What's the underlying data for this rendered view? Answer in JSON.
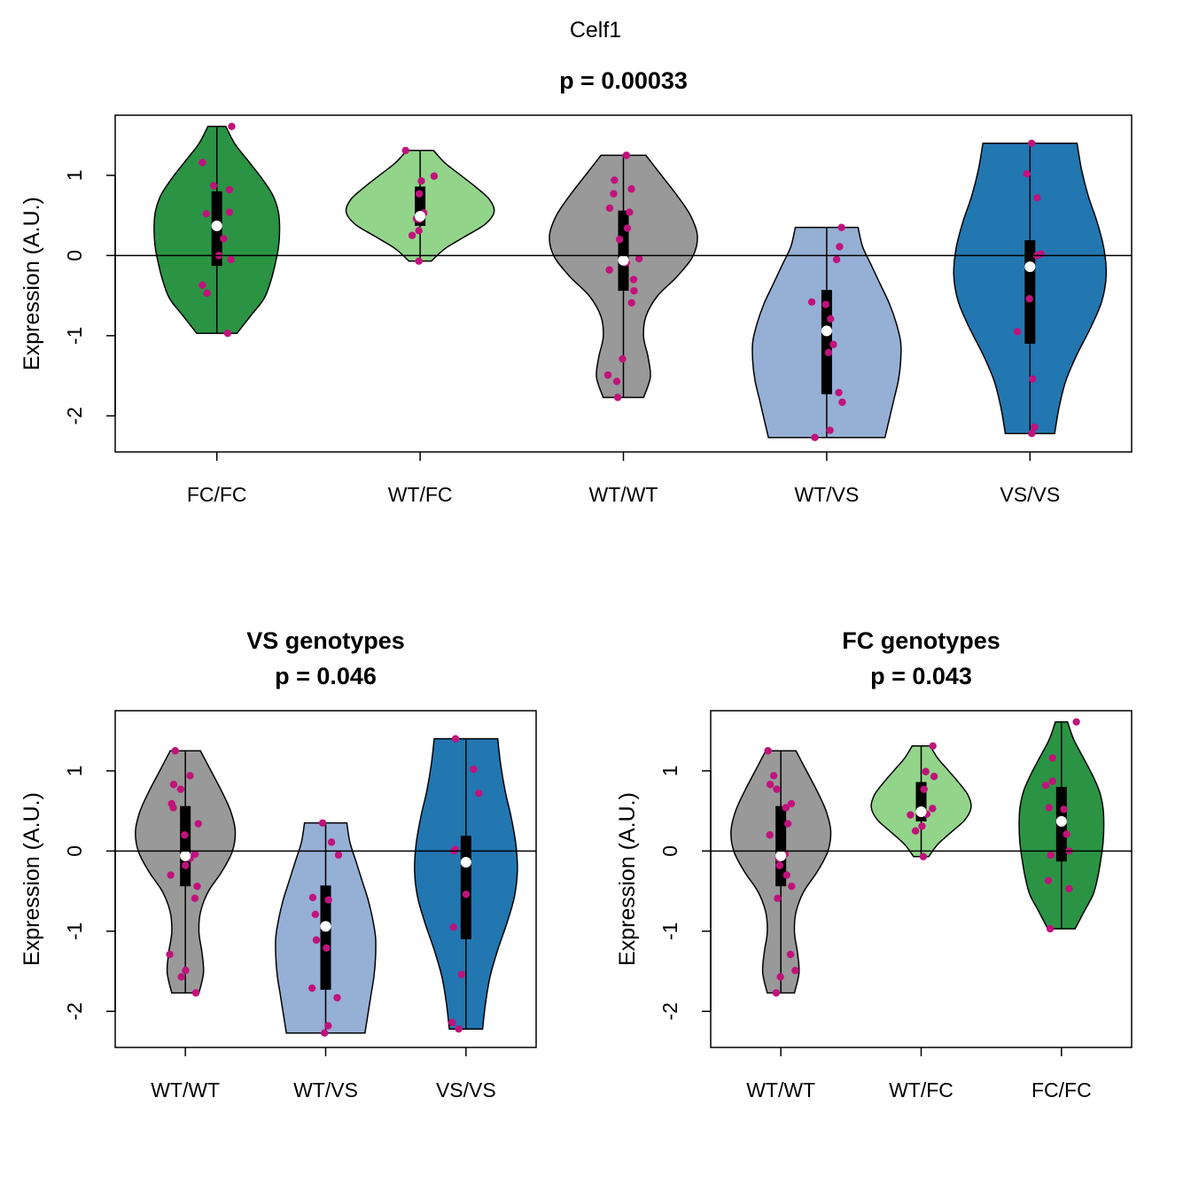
{
  "main_title": "Celf1",
  "colors": {
    "FC/FC": "#2a9444",
    "WT/FC": "#93d48b",
    "WT/WT": "#999999",
    "WT/VS": "#96afd5",
    "VS/VS": "#2277b1",
    "points": "#c1127c",
    "median": "#ffffff"
  },
  "chart_data": [
    {
      "id": "all",
      "type": "violin",
      "title_lines": [
        "p = 0.00033"
      ],
      "xlabel": "",
      "ylabel": "Expression (A.U.)",
      "ylim": [
        -2.45,
        1.75
      ],
      "yticks": [
        -2,
        -1,
        0,
        1
      ],
      "hline": 0,
      "categories": [
        "FC/FC",
        "WT/FC",
        "WT/WT",
        "WT/VS",
        "VS/VS"
      ],
      "groups": [
        {
          "name": "FC/FC",
          "color": "#2a9444",
          "min": -0.97,
          "max": 1.61,
          "q1": -0.13,
          "q3": 0.8,
          "median": 0.37,
          "violin_widths": [
            0.18,
            0.3,
            0.42,
            0.48,
            0.52,
            0.55,
            0.56,
            0.55,
            0.5,
            0.4,
            0.28,
            0.16,
            0.08
          ],
          "points": [
            -0.97,
            -0.47,
            -0.37,
            -0.05,
            0.0,
            0.21,
            0.52,
            0.54,
            0.82,
            0.87,
            1.16,
            1.61
          ]
        },
        {
          "name": "WT/FC",
          "color": "#93d48b",
          "min": -0.07,
          "max": 1.31,
          "q1": 0.37,
          "q3": 0.86,
          "median": 0.49,
          "violin_widths": [
            0.1,
            0.22,
            0.4,
            0.58,
            0.66,
            0.62,
            0.5,
            0.36,
            0.22,
            0.12
          ],
          "points": [
            -0.07,
            0.25,
            0.31,
            0.45,
            0.46,
            0.53,
            0.77,
            0.93,
            0.99,
            1.31
          ]
        },
        {
          "name": "WT/WT",
          "color": "#999999",
          "min": -1.77,
          "max": 1.25,
          "q1": -0.44,
          "q3": 0.56,
          "median": -0.06,
          "violin_widths": [
            0.18,
            0.24,
            0.22,
            0.18,
            0.2,
            0.3,
            0.48,
            0.62,
            0.66,
            0.6,
            0.48,
            0.34,
            0.2
          ],
          "points": [
            -1.77,
            -1.57,
            -1.49,
            -1.29,
            -0.59,
            -0.44,
            -0.3,
            -0.18,
            -0.09,
            -0.04,
            0.2,
            0.34,
            0.54,
            0.59,
            0.77,
            0.83,
            0.94,
            1.25
          ]
        },
        {
          "name": "WT/VS",
          "color": "#96afd5",
          "min": -2.27,
          "max": 0.35,
          "q1": -1.73,
          "q3": -0.43,
          "median": -0.94,
          "violin_widths": [
            0.52,
            0.56,
            0.6,
            0.64,
            0.66,
            0.66,
            0.62,
            0.56,
            0.48,
            0.4,
            0.32,
            0.28
          ],
          "points": [
            -2.27,
            -2.18,
            -1.83,
            -1.71,
            -1.21,
            -1.11,
            -0.79,
            -0.61,
            -0.58,
            -0.05,
            0.11,
            0.35
          ]
        },
        {
          "name": "VS/VS",
          "color": "#2277b1",
          "min": -2.22,
          "max": 1.4,
          "q1": -1.1,
          "q3": 0.19,
          "median": -0.14,
          "violin_widths": [
            0.22,
            0.26,
            0.32,
            0.42,
            0.54,
            0.64,
            0.68,
            0.66,
            0.6,
            0.52,
            0.46,
            0.42
          ],
          "points": [
            -2.22,
            -2.14,
            -1.54,
            -0.95,
            -0.54,
            0.0,
            0.02,
            0.72,
            1.02,
            1.4
          ]
        }
      ]
    },
    {
      "id": "vs",
      "type": "violin",
      "title_lines": [
        "VS genotypes",
        "p = 0.046"
      ],
      "xlabel": "",
      "ylabel": "Expression (A.U.)",
      "ylim": [
        -2.45,
        1.75
      ],
      "yticks": [
        -2,
        -1,
        0,
        1
      ],
      "hline": 0,
      "categories": [
        "WT/WT",
        "WT/VS",
        "VS/VS"
      ],
      "groups": [
        {
          "name": "WT/WT",
          "color": "#999999",
          "min": -1.77,
          "max": 1.25,
          "q1": -0.44,
          "q3": 0.56,
          "median": -0.06,
          "violin_widths": [
            0.18,
            0.24,
            0.22,
            0.18,
            0.2,
            0.3,
            0.48,
            0.62,
            0.66,
            0.6,
            0.48,
            0.34,
            0.2
          ],
          "points": [
            -1.77,
            -1.57,
            -1.49,
            -1.29,
            -0.59,
            -0.44,
            -0.3,
            -0.18,
            -0.09,
            -0.04,
            0.2,
            0.34,
            0.54,
            0.59,
            0.77,
            0.83,
            0.94,
            1.25
          ]
        },
        {
          "name": "WT/VS",
          "color": "#96afd5",
          "min": -2.27,
          "max": 0.35,
          "q1": -1.73,
          "q3": -0.43,
          "median": -0.94,
          "violin_widths": [
            0.52,
            0.56,
            0.6,
            0.64,
            0.66,
            0.66,
            0.62,
            0.56,
            0.48,
            0.4,
            0.32,
            0.28
          ],
          "points": [
            -2.27,
            -2.18,
            -1.83,
            -1.71,
            -1.21,
            -1.11,
            -0.79,
            -0.61,
            -0.58,
            -0.05,
            0.11,
            0.35
          ]
        },
        {
          "name": "VS/VS",
          "color": "#2277b1",
          "min": -2.22,
          "max": 1.4,
          "q1": -1.1,
          "q3": 0.19,
          "median": -0.14,
          "violin_widths": [
            0.22,
            0.26,
            0.32,
            0.42,
            0.54,
            0.64,
            0.68,
            0.66,
            0.6,
            0.52,
            0.46,
            0.42
          ],
          "points": [
            -2.22,
            -2.14,
            -1.54,
            -0.95,
            -0.54,
            0.0,
            0.02,
            0.72,
            1.02,
            1.4
          ]
        }
      ]
    },
    {
      "id": "fc",
      "type": "violin",
      "title_lines": [
        "FC genotypes",
        "p = 0.043"
      ],
      "xlabel": "",
      "ylabel": "Expression (A.U.)",
      "ylim": [
        -2.45,
        1.75
      ],
      "yticks": [
        -2,
        -1,
        0,
        1
      ],
      "hline": 0,
      "categories": [
        "WT/WT",
        "WT/FC",
        "FC/FC"
      ],
      "groups": [
        {
          "name": "WT/WT",
          "color": "#999999",
          "min": -1.77,
          "max": 1.25,
          "q1": -0.44,
          "q3": 0.56,
          "median": -0.06,
          "violin_widths": [
            0.18,
            0.24,
            0.22,
            0.18,
            0.2,
            0.3,
            0.48,
            0.62,
            0.66,
            0.6,
            0.48,
            0.34,
            0.2
          ],
          "points": [
            -1.77,
            -1.57,
            -1.49,
            -1.29,
            -0.59,
            -0.44,
            -0.3,
            -0.18,
            -0.09,
            -0.04,
            0.2,
            0.34,
            0.54,
            0.59,
            0.77,
            0.83,
            0.94,
            1.25
          ]
        },
        {
          "name": "WT/FC",
          "color": "#93d48b",
          "min": -0.07,
          "max": 1.31,
          "q1": 0.37,
          "q3": 0.86,
          "median": 0.49,
          "violin_widths": [
            0.1,
            0.22,
            0.4,
            0.58,
            0.66,
            0.62,
            0.5,
            0.36,
            0.22,
            0.12
          ],
          "points": [
            -0.07,
            0.25,
            0.31,
            0.45,
            0.46,
            0.53,
            0.77,
            0.93,
            0.99,
            1.31
          ]
        },
        {
          "name": "FC/FC",
          "color": "#2a9444",
          "min": -0.97,
          "max": 1.61,
          "q1": -0.13,
          "q3": 0.8,
          "median": 0.37,
          "violin_widths": [
            0.18,
            0.3,
            0.42,
            0.48,
            0.52,
            0.55,
            0.56,
            0.55,
            0.5,
            0.4,
            0.28,
            0.16,
            0.08
          ],
          "points": [
            -0.97,
            -0.47,
            -0.37,
            -0.05,
            0.0,
            0.21,
            0.52,
            0.54,
            0.82,
            0.87,
            1.16,
            1.61
          ]
        }
      ]
    }
  ]
}
